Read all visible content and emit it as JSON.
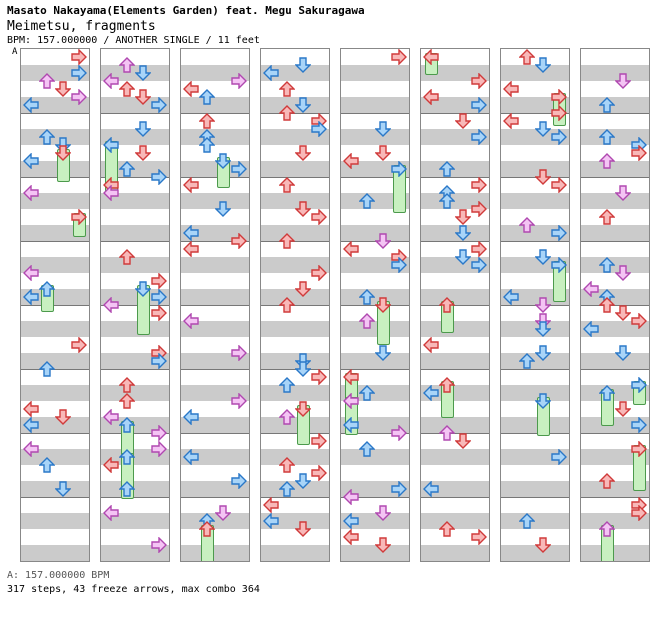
{
  "header": {
    "artist": "Masato Nakayama(Elements Garden) feat. Megu Sakuragawa",
    "title": "Meimetsu, fragments",
    "meta": "BPM: 157.000000 / ANOTHER SINGLE / 11 feet",
    "bpm_marker": "A"
  },
  "footer": {
    "bpm_line": "A: 157.000000 BPM",
    "stats": "317 steps, 43 freeze arrows, max combo 364"
  },
  "colors": {
    "red_fill": "#f8b8b8",
    "red_stroke": "#d03a3a",
    "blue_fill": "#a8d4f8",
    "blue_stroke": "#2a78c8",
    "pink_fill": "#f4c4f4",
    "pink_stroke": "#b048b0",
    "freeze_fill": "#c8f0c0",
    "freeze_stroke": "#4c9a4c",
    "band": "#cbcbcb"
  },
  "chart": {
    "columns": 8,
    "lanes": [
      "left",
      "down",
      "up",
      "right"
    ],
    "note_colors": [
      "red",
      "blue",
      "pink"
    ],
    "pattern_seeds": [
      3,
      17,
      29,
      41,
      57,
      71,
      89,
      103
    ]
  }
}
